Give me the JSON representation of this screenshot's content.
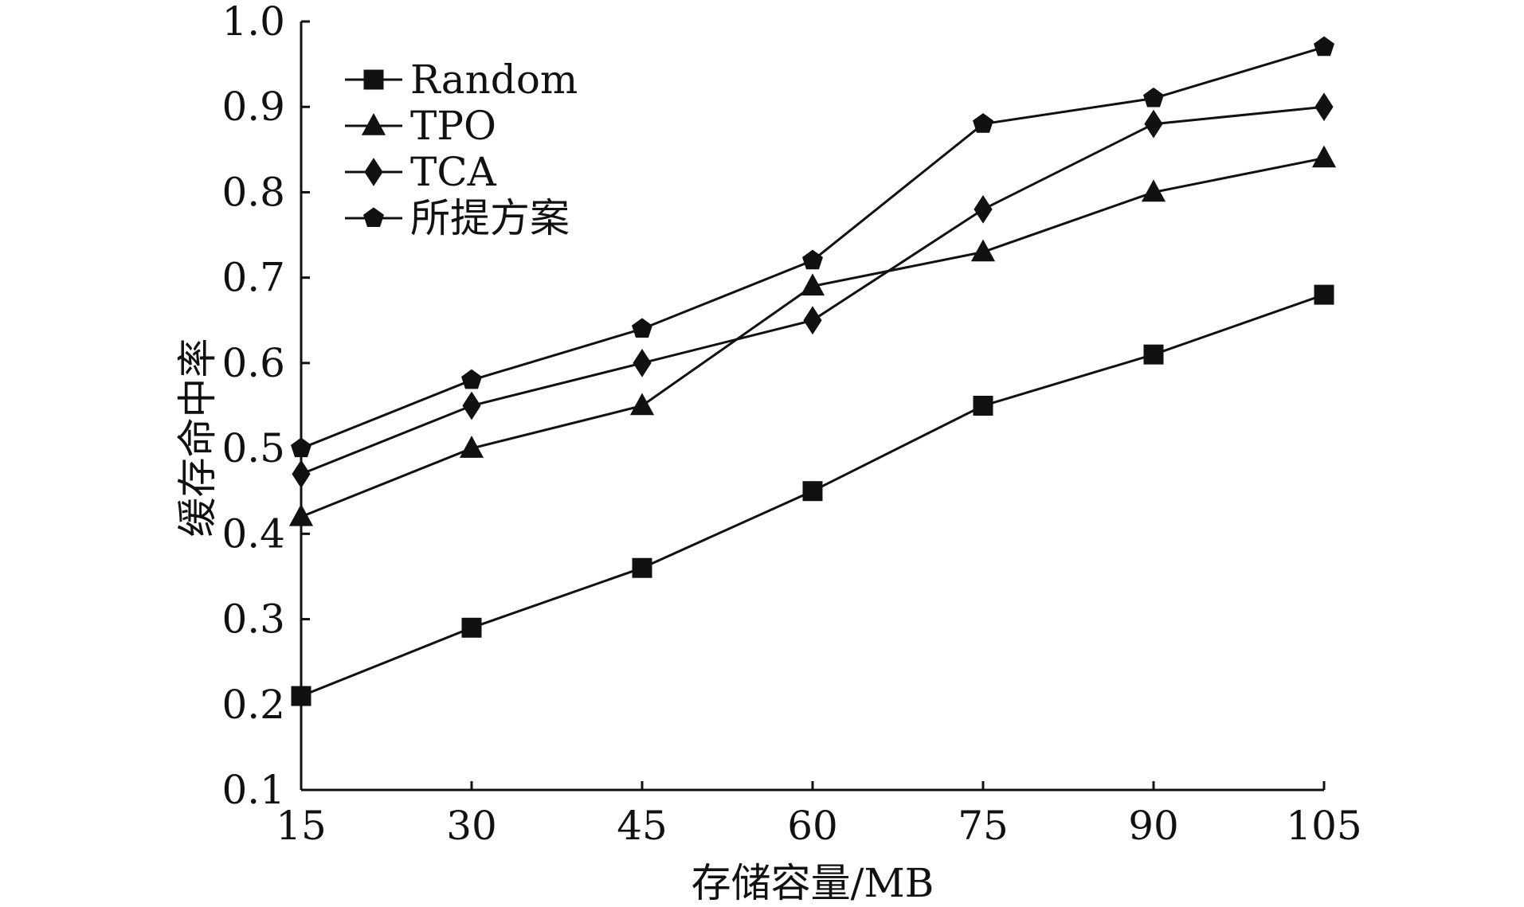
{
  "chart_data": {
    "type": "line",
    "x": [
      15,
      30,
      45,
      60,
      75,
      90,
      105
    ],
    "xlabel": "存储容量/MB",
    "ylabel": "缓存命中率",
    "xlim": [
      15,
      105
    ],
    "ylim": [
      0.1,
      1.0
    ],
    "x_ticks": [
      "15",
      "30",
      "45",
      "60",
      "75",
      "90",
      "105"
    ],
    "y_ticks": [
      "0.1",
      "0.2",
      "0.3",
      "0.4",
      "0.5",
      "0.6",
      "0.7",
      "0.8",
      "0.9",
      "1.0"
    ],
    "grid": false,
    "legend_position": "top-left",
    "series": [
      {
        "name": "Random",
        "marker": "square",
        "values": [
          0.21,
          0.29,
          0.36,
          0.45,
          0.55,
          0.61,
          0.68
        ]
      },
      {
        "name": "TPO",
        "marker": "triangle",
        "values": [
          0.42,
          0.5,
          0.55,
          0.69,
          0.73,
          0.8,
          0.84
        ]
      },
      {
        "name": "TCA",
        "marker": "diamond",
        "values": [
          0.47,
          0.55,
          0.6,
          0.65,
          0.78,
          0.88,
          0.9
        ]
      },
      {
        "name": "所提方案",
        "marker": "pentagon",
        "values": [
          0.5,
          0.58,
          0.64,
          0.72,
          0.88,
          0.91,
          0.97
        ]
      }
    ],
    "colors": {
      "line": "#111111",
      "background": "#ffffff"
    }
  }
}
